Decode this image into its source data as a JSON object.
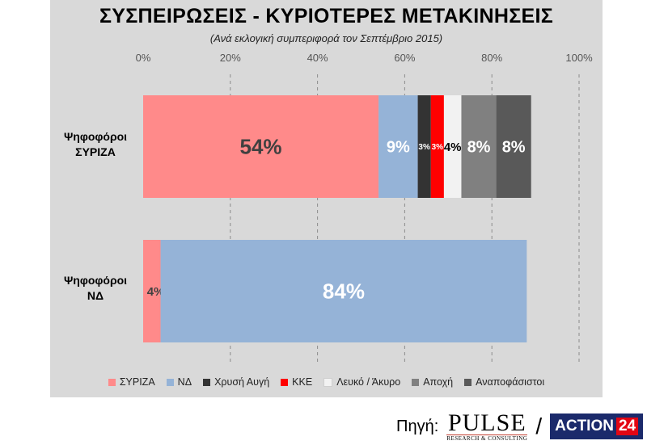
{
  "title": "ΣΥΣΠΕΙΡΩΣΕΙΣ - ΚΥΡΙΟΤΕΡΕΣ ΜΕΤΑΚΙΝΗΣΕΙΣ",
  "subtitle": "(Ανά εκλογική συμπεριφορά τον Σεπτέμβριο 2015)",
  "source": {
    "label": "Πηγή:",
    "pulse_word": "PULSE",
    "pulse_sub": "RESEARCH & CONSULTING",
    "separator": "/",
    "action_text": "ACTION",
    "action_num": "24"
  },
  "chart_data": {
    "type": "bar",
    "orientation": "horizontal",
    "stacked": "percent",
    "xlim": [
      0,
      100
    ],
    "x_ticks": [
      "0%",
      "20%",
      "40%",
      "60%",
      "80%",
      "100%"
    ],
    "grid": "vertical dashed",
    "legend_position": "bottom",
    "categories": [
      [
        "Ψηφοφόροι",
        "ΣΥΡΙΖΑ"
      ],
      [
        "Ψηφοφόροι",
        "ΝΔ"
      ]
    ],
    "series": [
      {
        "name": "ΣΥΡΙΖΑ",
        "color": "#ff8a8a",
        "values": [
          54,
          4
        ],
        "labels": [
          "54%",
          "4%"
        ],
        "label_color": [
          "#404040",
          "#404040"
        ]
      },
      {
        "name": "ΝΔ",
        "color": "#95b3d7",
        "values": [
          9,
          84
        ],
        "labels": [
          "9%",
          "84%"
        ],
        "label_color": [
          "#ffffff",
          "#ffffff"
        ]
      },
      {
        "name": "Χρυσή Αυγή",
        "color": "#333333",
        "values": [
          3,
          0
        ],
        "labels": [
          "3%",
          ""
        ],
        "label_color": [
          "#ffffff",
          "#ffffff"
        ]
      },
      {
        "name": "ΚΚΕ",
        "color": "#ff0000",
        "values": [
          3,
          0
        ],
        "labels": [
          "3%",
          ""
        ],
        "label_color": [
          "#ffffff",
          "#ffffff"
        ]
      },
      {
        "name": "Λευκό / Άκυρο",
        "color": "#f2f2f2",
        "values": [
          4,
          0
        ],
        "labels": [
          "4%",
          ""
        ],
        "label_color": [
          "#000000",
          "#000000"
        ]
      },
      {
        "name": "Αποχή",
        "color": "#808080",
        "values": [
          8,
          0
        ],
        "labels": [
          "8%",
          ""
        ],
        "label_color": [
          "#ffffff",
          "#ffffff"
        ]
      },
      {
        "name": "Αναποφάσιστοι",
        "color": "#595959",
        "values": [
          8,
          0
        ],
        "labels": [
          "8%",
          ""
        ],
        "label_color": [
          "#ffffff",
          "#ffffff"
        ]
      }
    ]
  }
}
